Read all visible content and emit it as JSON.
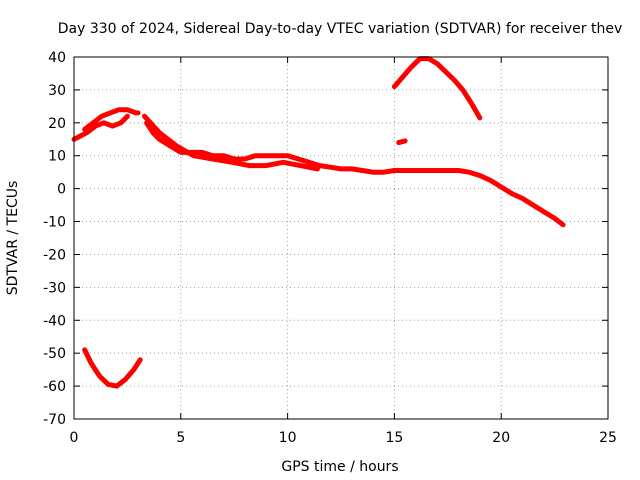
{
  "chart_data": {
    "type": "line",
    "title": "Day 330 of 2024, Sidereal Day-to-day VTEC variation (SDTVAR) for receiver thev",
    "xlabel": "GPS time / hours",
    "ylabel": "SDTVAR / TECUs",
    "xlim": [
      0,
      25
    ],
    "ylim": [
      -70,
      40
    ],
    "xticks": [
      0,
      5,
      10,
      15,
      20,
      25
    ],
    "yticks": [
      -70,
      -60,
      -50,
      -40,
      -30,
      -20,
      -10,
      0,
      10,
      20,
      30,
      40
    ],
    "grid": true,
    "series_color": "#ff0000",
    "series": [
      {
        "name": "main-arc",
        "x": [
          0.0,
          0.3,
          0.6,
          1.0,
          1.4,
          1.8,
          2.2,
          2.5
        ],
        "y": [
          15,
          16,
          17,
          19,
          20,
          19,
          20,
          22
        ]
      },
      {
        "name": "hump-arc",
        "x": [
          0.5,
          0.9,
          1.3,
          1.7,
          2.1,
          2.5,
          2.9,
          3.0
        ],
        "y": [
          18,
          20,
          22,
          23,
          24,
          24,
          23,
          23
        ]
      },
      {
        "name": "central-arc",
        "x": [
          3.4,
          3.7,
          4.0,
          4.5,
          5.0,
          5.5,
          6.0,
          6.5,
          7.0,
          7.5,
          8.0,
          8.5,
          9.0,
          9.5,
          10.0,
          10.5,
          11.0,
          11.5,
          12.0,
          12.5,
          13.0,
          13.5,
          14.0,
          14.5,
          15.0,
          15.5,
          16.0,
          16.5,
          17.0,
          17.5,
          18.0,
          18.5,
          19.0,
          19.5,
          20.0,
          20.5,
          21.0,
          21.5,
          22.0,
          22.5,
          22.9
        ],
        "y": [
          20,
          17,
          15,
          13,
          11,
          11,
          11,
          10,
          10,
          9,
          9,
          10,
          10,
          10,
          10,
          9,
          8,
          7,
          6.5,
          6,
          6,
          5.5,
          5,
          5,
          5.5,
          5.5,
          5.5,
          5.5,
          5.5,
          5.5,
          5.5,
          5,
          4,
          2.5,
          0.5,
          -1.5,
          -3,
          -5,
          -7,
          -9,
          -11
        ]
      },
      {
        "name": "central-arc-lower-edge",
        "x": [
          3.3,
          4.0,
          4.8,
          5.6,
          6.5,
          7.4,
          8.2,
          9.0,
          9.8,
          10.6,
          11.4
        ],
        "y": [
          22,
          17,
          13,
          10,
          9,
          8,
          7,
          7,
          8,
          7,
          6
        ]
      },
      {
        "name": "left-low-arc",
        "x": [
          0.5,
          0.8,
          1.2,
          1.6,
          2.0,
          2.4,
          2.8,
          3.1
        ],
        "y": [
          -49,
          -53,
          -57,
          -59.5,
          -60,
          -58,
          -55,
          -52
        ]
      },
      {
        "name": "upper-right-arc",
        "x": [
          15.0,
          15.4,
          15.8,
          16.2,
          16.6,
          17.0,
          17.4,
          17.8,
          18.2,
          18.6,
          19.0
        ],
        "y": [
          31,
          34,
          37,
          39.5,
          39.5,
          38,
          35.5,
          33,
          30,
          26,
          21.5
        ]
      },
      {
        "name": "isolated-segment",
        "x": [
          15.2,
          15.5
        ],
        "y": [
          14,
          14.5
        ]
      }
    ]
  }
}
